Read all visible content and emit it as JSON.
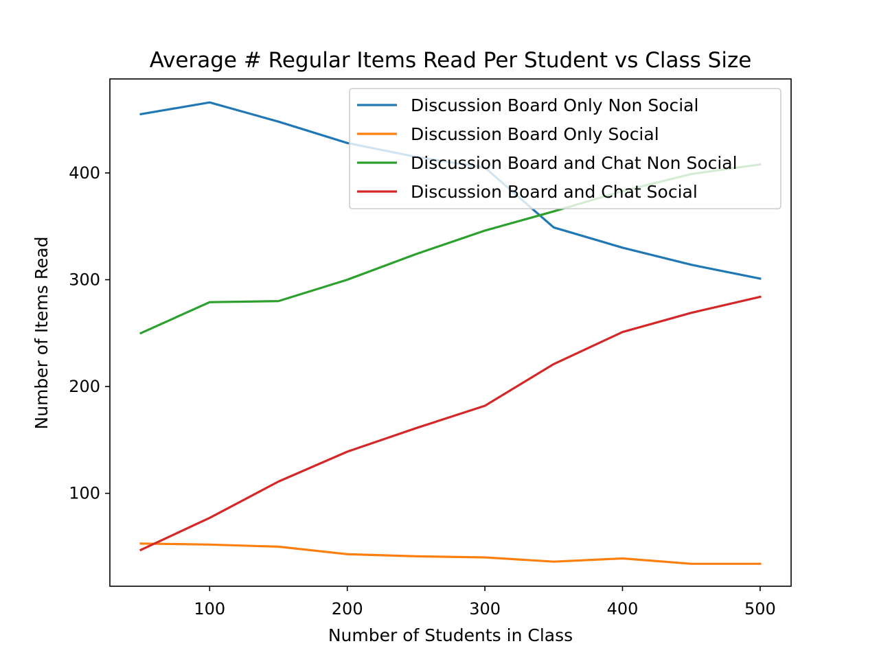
{
  "chart_data": {
    "type": "line",
    "title": "Average # Regular Items Read Per Student vs Class Size",
    "xlabel": "Number of Students in Class",
    "ylabel": "Number of Items Read",
    "x": [
      50,
      100,
      150,
      200,
      250,
      300,
      350,
      400,
      450,
      500
    ],
    "xlim": [
      27.5,
      522.5
    ],
    "ylim": [
      13,
      488
    ],
    "xticks": [
      100,
      200,
      300,
      400,
      500
    ],
    "yticks": [
      100,
      200,
      300,
      400
    ],
    "grid": false,
    "legend_position": "upper right",
    "series": [
      {
        "name": "Discussion Board Only Non Social",
        "color": "#1f77b4",
        "values": [
          455,
          466,
          448,
          428,
          415,
          405,
          349,
          330,
          314,
          301
        ]
      },
      {
        "name": "Discussion Board Only Social",
        "color": "#ff7f0e",
        "values": [
          53,
          52,
          50,
          43,
          41,
          40,
          36,
          39,
          34,
          34
        ]
      },
      {
        "name": "Discussion Board and Chat Non Social",
        "color": "#2ca02c",
        "values": [
          250,
          279,
          280,
          300,
          324,
          346,
          364,
          383,
          399,
          408
        ]
      },
      {
        "name": "Discussion Board and Chat Social",
        "color": "#d62728",
        "values": [
          47,
          77,
          111,
          139,
          161,
          182,
          221,
          251,
          269,
          284
        ]
      }
    ]
  }
}
